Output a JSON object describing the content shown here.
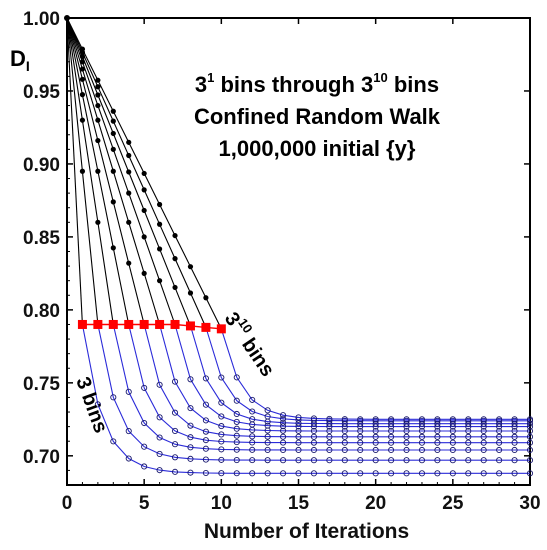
{
  "chart_data": {
    "type": "line",
    "title_lines": [
      "bins through",
      "bins",
      "Confined Random Walk",
      "1,000,000 initial {y}"
    ],
    "title_parts": {
      "base_a": "3",
      "exp_a": "1",
      "mid": " bins through ",
      "base_b": "3",
      "exp_b": "10",
      "end": " bins"
    },
    "xlabel": "Number of Iterations",
    "ylabel": {
      "base": "D",
      "sub": "I"
    },
    "xlim": [
      0,
      30
    ],
    "ylim": [
      0.68,
      1.0
    ],
    "x_ticks": [
      "0",
      "5",
      "10",
      "15",
      "20",
      "25",
      "30"
    ],
    "y_ticks": [
      "0.70",
      "0.75",
      "0.80",
      "0.85",
      "0.90",
      "0.95",
      "1.00"
    ],
    "annotations": {
      "top_series": {
        "base": "3",
        "exp": "10",
        "tail": " bins"
      },
      "bottom_series": "3 bins"
    },
    "colors": {
      "phase1_line": "#000000",
      "phase1_marker": "#000000",
      "phase2_line": "#2b2bd9",
      "phase2_marker": "#1a1a6e",
      "transition_marker": "#ff0000"
    },
    "series": [
      {
        "k": 1,
        "transition_iter": 1,
        "transition_value": 0.79,
        "final": 0.688
      },
      {
        "k": 2,
        "transition_iter": 2,
        "transition_value": 0.79,
        "final": 0.697
      },
      {
        "k": 3,
        "transition_iter": 3,
        "transition_value": 0.79,
        "final": 0.704
      },
      {
        "k": 4,
        "transition_iter": 4,
        "transition_value": 0.79,
        "final": 0.709
      },
      {
        "k": 5,
        "transition_iter": 5,
        "transition_value": 0.79,
        "final": 0.713
      },
      {
        "k": 6,
        "transition_iter": 6,
        "transition_value": 0.79,
        "final": 0.717
      },
      {
        "k": 7,
        "transition_iter": 7,
        "transition_value": 0.79,
        "final": 0.72
      },
      {
        "k": 8,
        "transition_iter": 8,
        "transition_value": 0.789,
        "final": 0.722
      },
      {
        "k": 9,
        "transition_iter": 9,
        "transition_value": 0.788,
        "final": 0.724
      },
      {
        "k": 10,
        "transition_iter": 10,
        "transition_value": 0.787,
        "final": 0.725
      }
    ],
    "initial_value": 1.0,
    "grid": false,
    "legend": "none"
  }
}
